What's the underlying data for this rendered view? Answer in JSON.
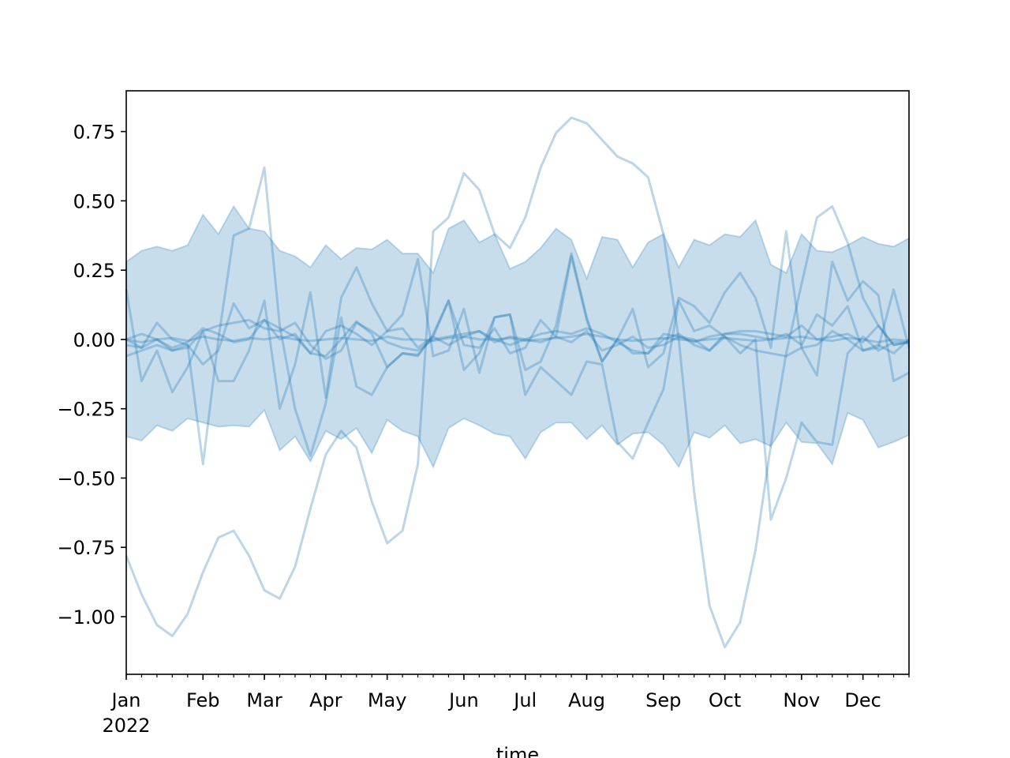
{
  "chart_data": {
    "type": "line",
    "title": "",
    "xlabel": "time",
    "ylabel": "",
    "ylim": [
      -1.208,
      0.897
    ],
    "grid": false,
    "color": "#1f77b4",
    "x": [
      "2022-01-03",
      "2022-01-10",
      "2022-01-17",
      "2022-01-24",
      "2022-01-31",
      "2022-02-07",
      "2022-02-14",
      "2022-02-21",
      "2022-02-28",
      "2022-03-07",
      "2022-03-14",
      "2022-03-21",
      "2022-03-28",
      "2022-04-04",
      "2022-04-11",
      "2022-04-18",
      "2022-04-25",
      "2022-05-02",
      "2022-05-09",
      "2022-05-16",
      "2022-05-23",
      "2022-05-30",
      "2022-06-06",
      "2022-06-13",
      "2022-06-20",
      "2022-06-27",
      "2022-07-04",
      "2022-07-11",
      "2022-07-18",
      "2022-07-25",
      "2022-08-01",
      "2022-08-08",
      "2022-08-15",
      "2022-08-22",
      "2022-08-29",
      "2022-09-05",
      "2022-09-12",
      "2022-09-19",
      "2022-09-26",
      "2022-10-03",
      "2022-10-10",
      "2022-10-17",
      "2022-10-24",
      "2022-10-31",
      "2022-11-07",
      "2022-11-14",
      "2022-11-21",
      "2022-11-28",
      "2022-12-05",
      "2022-12-12",
      "2022-12-19",
      "2022-12-26"
    ],
    "xticks": [
      {
        "date": "2022-01-03",
        "label": "Jan",
        "sublabel": "2022"
      },
      {
        "date": "2022-02-07",
        "label": "Feb"
      },
      {
        "date": "2022-03-07",
        "label": "Mar"
      },
      {
        "date": "2022-04-04",
        "label": "Apr"
      },
      {
        "date": "2022-05-02",
        "label": "May"
      },
      {
        "date": "2022-06-06",
        "label": "Jun"
      },
      {
        "date": "2022-07-04",
        "label": "Jul"
      },
      {
        "date": "2022-08-01",
        "label": "Aug"
      },
      {
        "date": "2022-09-05",
        "label": "Sep"
      },
      {
        "date": "2022-10-03",
        "label": "Oct"
      },
      {
        "date": "2022-11-07",
        "label": "Nov"
      },
      {
        "date": "2022-12-05",
        "label": "Dec"
      }
    ],
    "yticks": [
      {
        "value": 0.75,
        "label": "0.75"
      },
      {
        "value": 0.5,
        "label": "0.50"
      },
      {
        "value": 0.25,
        "label": "0.25"
      },
      {
        "value": 0.0,
        "label": "0.00"
      },
      {
        "value": -0.25,
        "label": "−0.25"
      },
      {
        "value": -0.5,
        "label": "−0.50"
      },
      {
        "value": -0.75,
        "label": "−0.75"
      },
      {
        "value": -1.0,
        "label": "−1.00"
      }
    ],
    "band": {
      "upper": [
        0.28,
        0.32,
        0.335,
        0.32,
        0.34,
        0.45,
        0.38,
        0.48,
        0.4,
        0.39,
        0.32,
        0.3,
        0.26,
        0.34,
        0.29,
        0.33,
        0.325,
        0.36,
        0.31,
        0.31,
        0.24,
        0.4,
        0.43,
        0.35,
        0.38,
        0.255,
        0.28,
        0.33,
        0.4,
        0.36,
        0.22,
        0.37,
        0.36,
        0.26,
        0.35,
        0.38,
        0.26,
        0.36,
        0.34,
        0.38,
        0.37,
        0.43,
        0.27,
        0.24,
        0.38,
        0.32,
        0.315,
        0.34,
        0.37,
        0.345,
        0.335,
        0.365
      ],
      "lower": [
        -0.35,
        -0.365,
        -0.31,
        -0.33,
        -0.285,
        -0.3,
        -0.315,
        -0.31,
        -0.315,
        -0.255,
        -0.4,
        -0.35,
        -0.44,
        -0.33,
        -0.36,
        -0.32,
        -0.41,
        -0.29,
        -0.33,
        -0.35,
        -0.46,
        -0.32,
        -0.285,
        -0.31,
        -0.34,
        -0.35,
        -0.43,
        -0.335,
        -0.3,
        -0.3,
        -0.36,
        -0.31,
        -0.38,
        -0.34,
        -0.335,
        -0.38,
        -0.46,
        -0.335,
        -0.355,
        -0.31,
        -0.375,
        -0.36,
        -0.385,
        -0.3,
        -0.37,
        -0.375,
        -0.45,
        -0.265,
        -0.29,
        -0.39,
        -0.37,
        -0.345
      ]
    },
    "series": [
      {
        "values": [
          -0.78,
          -0.92,
          -1.03,
          -1.07,
          -0.99,
          -0.84,
          -0.715,
          -0.69,
          -0.78,
          -0.905,
          -0.935,
          -0.82,
          -0.61,
          -0.415,
          -0.33,
          -0.39,
          -0.585,
          -0.735,
          -0.69,
          -0.45,
          0.39,
          0.44,
          0.6,
          0.54,
          0.38,
          0.33,
          0.44,
          0.62,
          0.745,
          0.8,
          0.78,
          0.72,
          0.66,
          0.635,
          0.585,
          0.38,
          0.0,
          -0.55,
          -0.96,
          -1.11,
          -1.02,
          -0.76,
          -0.38,
          -0.05,
          0.2,
          0.44,
          0.48,
          0.35,
          0.15,
          0.05,
          -0.02,
          -0.01
        ]
      },
      {
        "values": [
          0.18,
          -0.15,
          -0.04,
          -0.19,
          -0.1,
          0.03,
          -0.15,
          -0.15,
          -0.04,
          0.14,
          -0.25,
          -0.09,
          0.17,
          -0.21,
          0.15,
          0.26,
          0.13,
          0.03,
          0.09,
          0.29,
          -0.06,
          -0.04,
          0.11,
          -0.12,
          0.08,
          0.09,
          -0.11,
          -0.08,
          0.05,
          0.31,
          0.08,
          -0.08,
          0.0,
          0.11,
          -0.1,
          -0.05,
          0.15,
          0.12,
          0.06,
          0.17,
          0.24,
          0.15,
          -0.03,
          0.39,
          -0.03,
          -0.13,
          0.28,
          0.14,
          0.21,
          0.16,
          -0.15,
          -0.12
        ]
      },
      {
        "values": [
          0.0,
          -0.03,
          0.06,
          0.0,
          -0.02,
          -0.45,
          0.0,
          0.375,
          0.4,
          0.62,
          0.05,
          -0.25,
          -0.42,
          -0.23,
          0.08,
          -0.17,
          -0.2,
          -0.1,
          -0.05,
          -0.06,
          0.02,
          0.14,
          -0.11,
          -0.05,
          0.08,
          0.09,
          -0.2,
          -0.1,
          -0.15,
          -0.2,
          -0.08,
          -0.09,
          -0.37,
          -0.43,
          -0.3,
          -0.18,
          0.14,
          0.03,
          0.05,
          0.01,
          -0.05,
          0.0,
          -0.65,
          -0.5,
          -0.3,
          -0.37,
          -0.38,
          -0.05,
          0.01,
          -0.04,
          -0.01,
          -0.01
        ]
      },
      {
        "values": [
          -0.06,
          -0.04,
          -0.02,
          -0.04,
          -0.03,
          0.03,
          0.05,
          0.06,
          0.07,
          0.04,
          0.03,
          0.06,
          -0.02,
          -0.07,
          -0.04,
          0.06,
          0.03,
          -0.01,
          -0.03,
          -0.04,
          0.0,
          0.01,
          0.02,
          0.03,
          0.0,
          -0.02,
          0.0,
          0.02,
          0.03,
          0.02,
          0.04,
          0.02,
          -0.01,
          -0.04,
          -0.05,
          0.02,
          0.01,
          -0.01,
          0.01,
          0.02,
          0.03,
          0.03,
          0.02,
          0.01,
          0.05,
          0.0,
          0.01,
          0.02,
          -0.01,
          0.05,
          -0.02,
          -0.01
        ]
      },
      {
        "values": [
          0.0,
          0.02,
          0.0,
          -0.03,
          -0.01,
          0.04,
          0.02,
          -0.01,
          0.0,
          0.07,
          0.04,
          0.01,
          -0.05,
          0.03,
          0.05,
          0.02,
          -0.02,
          0.03,
          0.04,
          -0.03,
          0.01,
          -0.02,
          0.01,
          0.03,
          -0.01,
          0.01,
          0.0,
          -0.01,
          0.01,
          -0.01,
          0.03,
          -0.04,
          -0.02,
          0.01,
          -0.03,
          -0.02,
          0.01,
          0.0,
          -0.04,
          0.01,
          -0.02,
          -0.04,
          -0.05,
          -0.06,
          -0.03,
          -0.02,
          0.03,
          0.0,
          -0.04,
          -0.02,
          -0.05,
          0.0
        ]
      },
      {
        "values": [
          0,
          -0.01,
          0,
          0.005,
          -0.005,
          0.01,
          0,
          -0.005,
          0.005,
          0,
          0.01,
          0,
          -0.005,
          0,
          0.005,
          0,
          -0.005,
          0.01,
          0,
          0,
          -0.005,
          0.005,
          0.01,
          0,
          0,
          0.005,
          -0.005,
          0,
          0.005,
          0.01,
          0.02,
          0.01,
          0,
          -0.005,
          0,
          0.005,
          0,
          -0.005,
          0,
          0.005,
          0,
          -0.005,
          0,
          0.005,
          0.01,
          0,
          -0.005,
          0.005,
          0,
          -0.01,
          0,
          -0.005
        ]
      },
      {
        "values": [
          -0.02,
          -0.03,
          0.0,
          -0.04,
          -0.02,
          -0.09,
          -0.04,
          0.13,
          0.04,
          0.07,
          0.0,
          0.02,
          -0.05,
          -0.06,
          0.0,
          0.065,
          0.02,
          -0.1,
          -0.05,
          -0.055,
          0.01,
          0.14,
          -0.02,
          -0.03,
          0.04,
          -0.05,
          -0.03,
          0.07,
          0.01,
          0.3,
          0.07,
          -0.08,
          0.0,
          -0.05,
          -0.05,
          0.0,
          0.02,
          -0.02,
          -0.04,
          0.02,
          0.02,
          0.01,
          0.0,
          0.02,
          -0.02,
          0.09,
          0.05,
          0.12,
          -0.04,
          -0.03,
          0.18,
          -0.03
        ]
      }
    ]
  }
}
